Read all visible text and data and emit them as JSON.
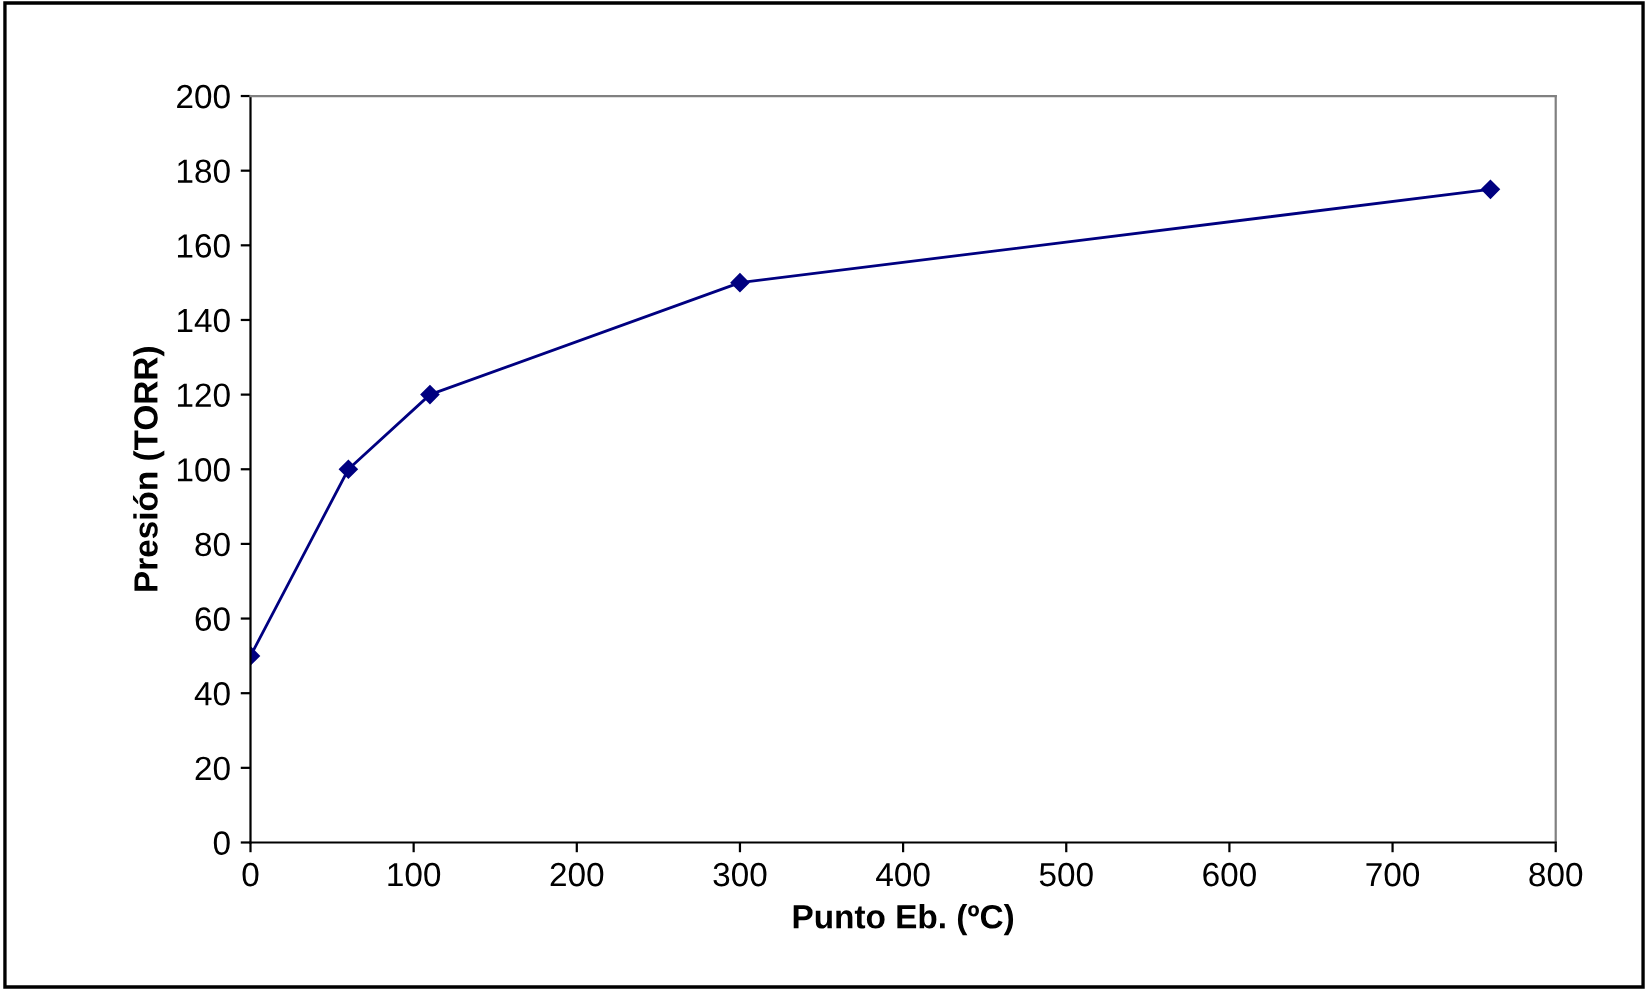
{
  "chart_data": {
    "type": "line",
    "xlabel": "Punto Eb. (ºC)",
    "ylabel": "Presión (TORR)",
    "x": [
      0,
      60,
      110,
      300,
      760
    ],
    "series": [
      {
        "color": "#000080",
        "values": [
          50,
          100,
          120,
          150,
          175
        ]
      }
    ],
    "xlim": [
      0,
      800
    ],
    "xticks": [
      0,
      100,
      200,
      300,
      400,
      500,
      600,
      700,
      800
    ],
    "ylim": [
      0,
      200
    ],
    "yticks": [
      0,
      20,
      40,
      60,
      80,
      100,
      120,
      140,
      160,
      180,
      200
    ],
    "grid": false,
    "legend": false,
    "marker": "diamond",
    "line_style": "solid"
  }
}
